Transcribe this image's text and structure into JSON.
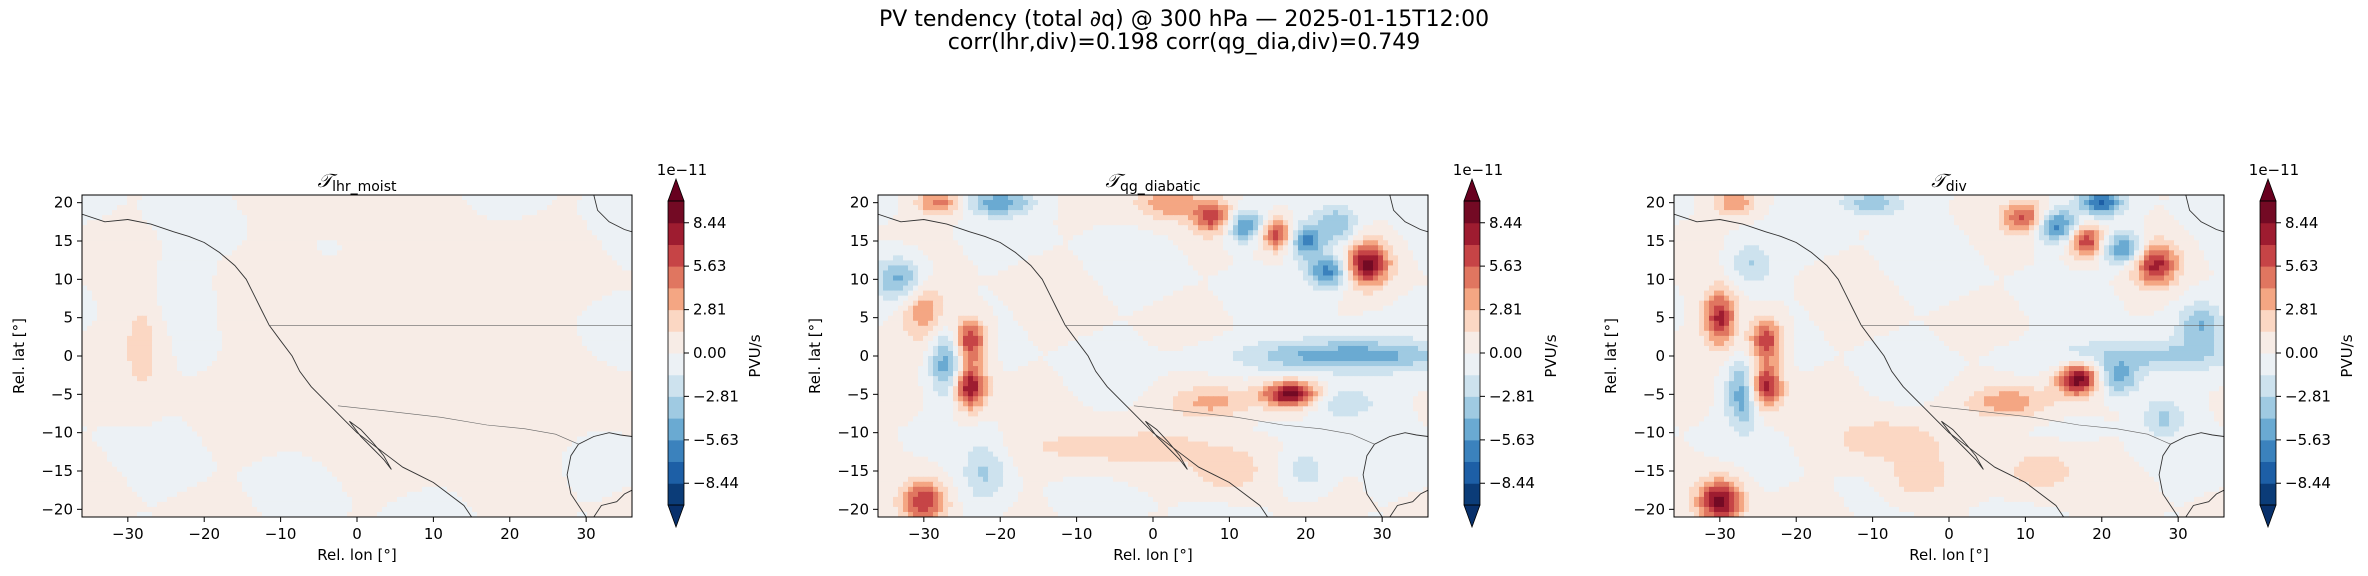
{
  "figure": {
    "title_line1": "PV tendency (total ∂q) @ 300 hPa — 2025-01-15T12:00",
    "title_line2": "corr(lhr,div)=0.198  corr(qg_dia,div)=0.749"
  },
  "colormap": {
    "name": "RdBu_r",
    "levels": [
      -9.85,
      -8.44,
      -7.03,
      -5.63,
      -4.22,
      -2.81,
      -1.41,
      0.0,
      1.41,
      2.81,
      4.22,
      5.63,
      7.03,
      8.44,
      9.85
    ],
    "colors": [
      "#0b3c78",
      "#1d5fa6",
      "#3b82bd",
      "#6aaad2",
      "#9fcae2",
      "#cde2ee",
      "#ecf1f5",
      "#f7ece6",
      "#fbd7c3",
      "#f4a683",
      "#e07660",
      "#c64446",
      "#9e1c30",
      "#730a24"
    ],
    "over_color": "#67001f",
    "under_color": "#08306b"
  },
  "chart_data": [
    {
      "type": "heatmap",
      "title_symbol": "𝒯",
      "title_subscript": "lhr_moist",
      "xlabel": "Rel. lon [°]",
      "ylabel": "Rel. lat [°]",
      "xlim": [
        -36,
        36
      ],
      "ylim": [
        -21,
        21
      ],
      "xticks": [
        -30,
        -20,
        -10,
        0,
        10,
        20,
        30
      ],
      "yticks": [
        -20,
        -15,
        -10,
        -5,
        0,
        5,
        10,
        15,
        20
      ],
      "colorbar": {
        "label": "PVU/s",
        "exponent": "1e−11",
        "ticks": [
          "8.44",
          "5.63",
          "2.81",
          "0.00",
          "−2.81",
          "−5.63",
          "−8.44"
        ],
        "tick_values": [
          8.44,
          5.63,
          2.81,
          0.0,
          -2.81,
          -5.63,
          -8.44
        ]
      },
      "blobs": [
        {
          "x": -28,
          "y": 2,
          "sx": 2,
          "sy": 5,
          "amp": 2.2
        },
        {
          "x": -24,
          "y": 8,
          "sx": 3,
          "sy": 3,
          "amp": -1.0
        },
        {
          "x": 20,
          "y": -6,
          "sx": 8,
          "sy": 4,
          "amp": 1.0
        },
        {
          "x": 5,
          "y": 3,
          "sx": 12,
          "sy": 9,
          "amp": 0.8
        }
      ]
    },
    {
      "type": "heatmap",
      "title_symbol": "𝒯",
      "title_subscript": "qg_diabatic",
      "xlabel": "Rel. lon [°]",
      "ylabel": "Rel. lat [°]",
      "xlim": [
        -36,
        36
      ],
      "ylim": [
        -21,
        21
      ],
      "xticks": [
        -30,
        -20,
        -10,
        0,
        10,
        20,
        30
      ],
      "yticks": [
        -20,
        -15,
        -10,
        -5,
        0,
        5,
        10,
        15,
        20
      ],
      "colorbar": {
        "label": "PVU/s",
        "exponent": "1e−11",
        "ticks": [
          "8.44",
          "5.63",
          "2.81",
          "0.00",
          "−2.81",
          "−5.63",
          "−8.44"
        ],
        "tick_values": [
          8.44,
          5.63,
          2.81,
          0.0,
          -2.81,
          -5.63,
          -8.44
        ]
      },
      "blobs": [
        {
          "x": -24,
          "y": 2,
          "sx": 1.5,
          "sy": 2,
          "amp": 7.5
        },
        {
          "x": -24,
          "y": -4,
          "sx": 1.5,
          "sy": 2,
          "amp": 8.5
        },
        {
          "x": -27,
          "y": -1,
          "sx": 1.5,
          "sy": 3,
          "amp": -5.5
        },
        {
          "x": -30,
          "y": 6,
          "sx": 2,
          "sy": 3,
          "amp": 4.0
        },
        {
          "x": -33,
          "y": 10,
          "sx": 2.5,
          "sy": 2,
          "amp": -5.0
        },
        {
          "x": -30,
          "y": -19,
          "sx": 2,
          "sy": 2,
          "amp": 7.0
        },
        {
          "x": -22,
          "y": -15,
          "sx": 2,
          "sy": 3,
          "amp": -3.0
        },
        {
          "x": 8,
          "y": 18,
          "sx": 2,
          "sy": 1.5,
          "amp": 6.5
        },
        {
          "x": 12,
          "y": 17,
          "sx": 2,
          "sy": 1.5,
          "amp": -6.5
        },
        {
          "x": 16,
          "y": 16,
          "sx": 1.5,
          "sy": 1.5,
          "amp": 7.0
        },
        {
          "x": 20,
          "y": 15,
          "sx": 1.5,
          "sy": 1.5,
          "amp": -6.0
        },
        {
          "x": 28,
          "y": 12,
          "sx": 2,
          "sy": 2,
          "amp": 9.0
        },
        {
          "x": 23,
          "y": 11,
          "sx": 2,
          "sy": 1.5,
          "amp": -6.5
        },
        {
          "x": 24,
          "y": 17,
          "sx": 2,
          "sy": 2,
          "amp": -4.0
        },
        {
          "x": 2,
          "y": 20,
          "sx": 3,
          "sy": 1.5,
          "amp": 4.0
        },
        {
          "x": -20,
          "y": 20,
          "sx": 3,
          "sy": 1.2,
          "amp": -5.0
        },
        {
          "x": -28,
          "y": 20,
          "sx": 2,
          "sy": 1.2,
          "amp": 5.0
        },
        {
          "x": 25,
          "y": 0,
          "sx": 9,
          "sy": 1.5,
          "amp": -5.5
        },
        {
          "x": 18,
          "y": -5,
          "sx": 2.5,
          "sy": 1.2,
          "amp": 9.0
        },
        {
          "x": 25,
          "y": -6,
          "sx": 3,
          "sy": 1.5,
          "amp": -3.0
        },
        {
          "x": 8,
          "y": -6,
          "sx": 4,
          "sy": 1.5,
          "amp": 3.5
        },
        {
          "x": -5,
          "y": -12,
          "sx": 10,
          "sy": 2,
          "amp": 2.0
        },
        {
          "x": 10,
          "y": -15,
          "sx": 3,
          "sy": 2,
          "amp": 2.5
        },
        {
          "x": 20,
          "y": -15,
          "sx": 2,
          "sy": 2,
          "amp": -2.5
        }
      ]
    },
    {
      "type": "heatmap",
      "title_symbol": "𝒯",
      "title_subscript": "div",
      "xlabel": "Rel. lon [°]",
      "ylabel": "Rel. lat [°]",
      "xlim": [
        -36,
        36
      ],
      "ylim": [
        -21,
        21
      ],
      "xticks": [
        -30,
        -20,
        -10,
        0,
        10,
        20,
        30
      ],
      "yticks": [
        -20,
        -15,
        -10,
        -5,
        0,
        5,
        10,
        15,
        20
      ],
      "colorbar": {
        "label": "PVU/s",
        "exponent": "1e−11",
        "ticks": [
          "8.44",
          "5.63",
          "2.81",
          "0.00",
          "−2.81",
          "−5.63",
          "−8.44"
        ],
        "tick_values": [
          8.44,
          5.63,
          2.81,
          0.0,
          -2.81,
          -5.63,
          -8.44
        ]
      },
      "blobs": [
        {
          "x": -30,
          "y": 5,
          "sx": 1.5,
          "sy": 2.5,
          "amp": 7.5
        },
        {
          "x": -24,
          "y": 2,
          "sx": 1.5,
          "sy": 2,
          "amp": 7.0
        },
        {
          "x": -24,
          "y": -4,
          "sx": 1.5,
          "sy": 2,
          "amp": 8.0
        },
        {
          "x": -27,
          "y": -5,
          "sx": 1.5,
          "sy": 3,
          "amp": -5.5
        },
        {
          "x": -30,
          "y": -19,
          "sx": 2,
          "sy": 2,
          "amp": 9.0
        },
        {
          "x": -26,
          "y": 12,
          "sx": 2,
          "sy": 2,
          "amp": -3.0
        },
        {
          "x": 10,
          "y": 18,
          "sx": 2,
          "sy": 1.5,
          "amp": 6.0
        },
        {
          "x": 14,
          "y": 17,
          "sx": 2,
          "sy": 1.5,
          "amp": -6.5
        },
        {
          "x": 18,
          "y": 15,
          "sx": 1.5,
          "sy": 1.5,
          "amp": 7.0
        },
        {
          "x": 23,
          "y": 14,
          "sx": 2,
          "sy": 1.5,
          "amp": -6.0
        },
        {
          "x": 27,
          "y": 12,
          "sx": 2,
          "sy": 2,
          "amp": 7.5
        },
        {
          "x": 20,
          "y": 20,
          "sx": 2,
          "sy": 1.2,
          "amp": -7.0
        },
        {
          "x": -10,
          "y": 20,
          "sx": 3,
          "sy": 1.2,
          "amp": -4.0
        },
        {
          "x": -28,
          "y": 20,
          "sx": 2,
          "sy": 1.2,
          "amp": 4.0
        },
        {
          "x": 17,
          "y": -3,
          "sx": 2,
          "sy": 1.5,
          "amp": 9.5
        },
        {
          "x": 22,
          "y": -3,
          "sx": 2,
          "sy": 1.5,
          "amp": -5.0
        },
        {
          "x": 25,
          "y": 0,
          "sx": 9,
          "sy": 1.5,
          "amp": -3.5
        },
        {
          "x": 33,
          "y": 4,
          "sx": 2,
          "sy": 2,
          "amp": -4.0
        },
        {
          "x": 8,
          "y": -6,
          "sx": 4,
          "sy": 1.5,
          "amp": 4.0
        },
        {
          "x": -8,
          "y": -11,
          "sx": 5,
          "sy": 2,
          "amp": 2.5
        },
        {
          "x": -4,
          "y": -16,
          "sx": 3,
          "sy": 2,
          "amp": 2.5
        },
        {
          "x": 12,
          "y": -15,
          "sx": 3,
          "sy": 2,
          "amp": 2.5
        },
        {
          "x": 28,
          "y": -8,
          "sx": 2,
          "sy": 2,
          "amp": -3.0
        }
      ]
    }
  ]
}
